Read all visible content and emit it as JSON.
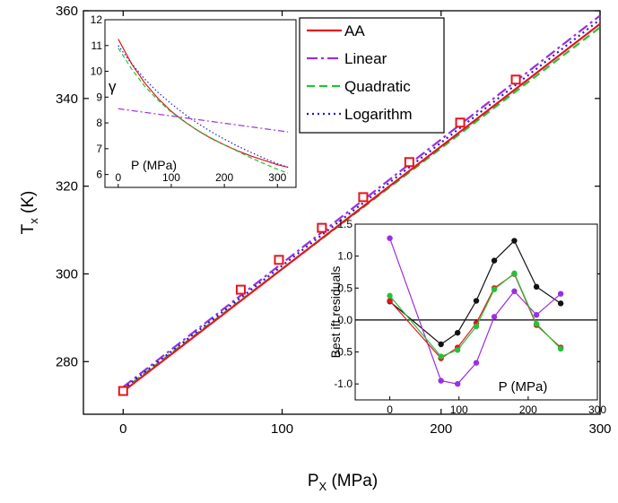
{
  "chart_data": [
    {
      "id": "main",
      "type": "line",
      "xlabel": "P",
      "xlabel_sub": "X",
      "xlabel_unit": " (MPa)",
      "ylabel": "T",
      "ylabel_sub": "x",
      "ylabel_unit": " (K)",
      "xlim": [
        -25,
        300
      ],
      "ylim": [
        268,
        360
      ],
      "xticks": [
        0,
        100,
        200,
        300
      ],
      "yticks": [
        280,
        300,
        320,
        340,
        360
      ],
      "legend_position": "top-right",
      "series": [
        {
          "name": "AA",
          "color": "#e8141b",
          "style": "solid",
          "x": [
            0,
            300
          ],
          "y": [
            273.2,
            357.0
          ]
        },
        {
          "name": "Linear",
          "color": "#9b2fe0",
          "style": "dashdot",
          "x": [
            0,
            300
          ],
          "y": [
            274.2,
            358.9
          ]
        },
        {
          "name": "Quadratic",
          "color": "#22c33a",
          "style": "dashed",
          "x": [
            0,
            300
          ],
          "y": [
            273.6,
            356.2
          ]
        },
        {
          "name": "Logarithm",
          "color": "#1b1bd0",
          "style": "dotted",
          "x": [
            0,
            300
          ],
          "y": [
            273.8,
            358.0
          ]
        }
      ],
      "markers": {
        "color": "#e8141b",
        "x": [
          0,
          74,
          98,
          125,
          151,
          180,
          212,
          247
        ],
        "y": [
          273.3,
          296.4,
          303.2,
          310.5,
          317.5,
          325.5,
          334.5,
          344.3
        ]
      }
    },
    {
      "id": "inset_gamma",
      "type": "line",
      "ylabel": "γ",
      "xlabel": "P (MPa)",
      "xlim": [
        -25,
        335
      ],
      "ylim": [
        5.5,
        12
      ],
      "xticks": [
        0,
        100,
        200,
        300
      ],
      "yticks": [
        6,
        7,
        8,
        9,
        10,
        11,
        12
      ],
      "series": [
        {
          "name": "AA",
          "color": "#e8141b",
          "style": "solid",
          "x": [
            0,
            25,
            50,
            75,
            100,
            125,
            150,
            175,
            200,
            225,
            250,
            275,
            300,
            320
          ],
          "y": [
            11.25,
            10.3,
            9.55,
            8.95,
            8.45,
            8.05,
            7.7,
            7.4,
            7.15,
            6.92,
            6.72,
            6.55,
            6.38,
            6.28
          ]
        },
        {
          "name": "Linear",
          "color": "#9b2fe0",
          "style": "dashdot",
          "x": [
            0,
            320
          ],
          "y": [
            8.55,
            7.65
          ]
        },
        {
          "name": "Quadratic",
          "color": "#22c33a",
          "style": "dashed",
          "x": [
            0,
            25,
            50,
            75,
            100,
            125,
            150,
            175,
            200,
            225,
            250,
            275,
            300,
            320
          ],
          "y": [
            10.9,
            10.1,
            9.42,
            8.88,
            8.42,
            8.04,
            7.71,
            7.42,
            7.15,
            6.9,
            6.65,
            6.42,
            6.2,
            6.05
          ]
        },
        {
          "name": "Logarithm",
          "color": "#1b1bd0",
          "style": "dotted",
          "x": [
            0,
            25,
            50,
            75,
            100,
            125,
            150,
            175,
            200,
            225,
            250,
            275,
            300,
            320
          ],
          "y": [
            11.0,
            10.3,
            9.7,
            9.18,
            8.74,
            8.34,
            7.98,
            7.66,
            7.37,
            7.1,
            6.86,
            6.63,
            6.42,
            6.28
          ]
        }
      ]
    },
    {
      "id": "inset_residuals",
      "type": "line",
      "ylabel": "Best ift residuals",
      "xlabel": "P (MPa)",
      "xlim": [
        -50,
        300
      ],
      "ylim": [
        -1.25,
        1.5
      ],
      "xticks": [
        0,
        100,
        200,
        300
      ],
      "yticks": [
        -1.0,
        -0.5,
        0.0,
        0.5,
        1.0,
        1.5
      ],
      "series": [
        {
          "name": "black",
          "color": "#111111",
          "x": [
            0,
            74,
            98,
            125,
            151,
            180,
            212,
            247
          ],
          "y": [
            0.29,
            -0.38,
            -0.2,
            0.3,
            0.93,
            1.24,
            0.52,
            0.26
          ]
        },
        {
          "name": "violet",
          "color": "#9b2fe0",
          "x": [
            0,
            74,
            98,
            125,
            151,
            180,
            212,
            247
          ],
          "y": [
            1.28,
            -0.95,
            -1.0,
            -0.67,
            0.05,
            0.45,
            0.08,
            0.41
          ]
        },
        {
          "name": "red",
          "color": "#e8141b",
          "x": [
            0,
            74,
            98,
            125,
            151,
            180,
            212,
            247
          ],
          "y": [
            0.3,
            -0.6,
            -0.43,
            -0.05,
            0.5,
            0.72,
            -0.08,
            -0.43
          ]
        },
        {
          "name": "green",
          "color": "#22c33a",
          "x": [
            0,
            74,
            98,
            125,
            151,
            180,
            212,
            247
          ],
          "y": [
            0.38,
            -0.57,
            -0.47,
            -0.1,
            0.48,
            0.73,
            -0.06,
            -0.45
          ]
        }
      ]
    }
  ]
}
